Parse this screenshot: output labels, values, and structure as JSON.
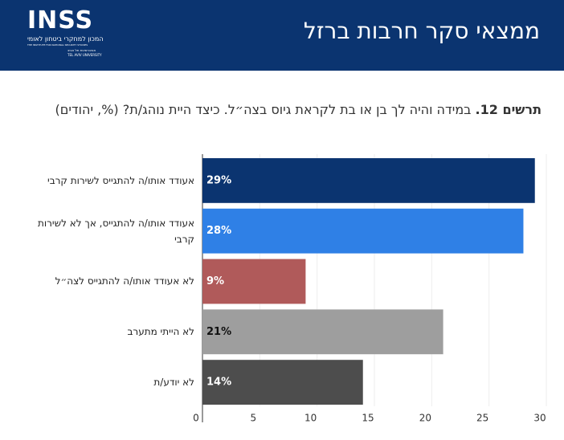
{
  "header": {
    "title": "ממצאי סקר חרבות ברזל",
    "logo": {
      "name": "INSS",
      "hebrew": "המכון למחקרי ביטחון לאומי",
      "english": "THE INSTITUTE FOR NATIONAL SECURITY STUDIES",
      "university_hebrew": "אוניברסיטת תל אביב",
      "university_english": "TEL AVIV UNIVERSITY"
    }
  },
  "chart_data": {
    "type": "hbar",
    "title_number": "תרשים 12.",
    "title": "במידה והיה לך בן או בת לקראת גיוס בצה״ל. כיצד היית נוהג/ת? (%, יהודים)",
    "categories": [
      "אעודד אותו/ה להתגייס לשירות קרבי",
      "אעודד אותו/ה להתגייס, אך לא לשירות קרבי",
      "לא אעודד אותו/ה להתגייס לצה״ל",
      "לא הייתי מתערב",
      "לא יודע/ת"
    ],
    "values": [
      29,
      28,
      9,
      21,
      14
    ],
    "value_labels": [
      "29%",
      "28%",
      "9%",
      "21%",
      "14%"
    ],
    "colors": [
      "#0b3470",
      "#2f80e6",
      "#b05a5a",
      "#9e9e9e",
      "#4d4d4d"
    ],
    "xlim": [
      0,
      30
    ],
    "xticks": [
      0,
      5,
      10,
      15,
      20,
      25,
      30
    ],
    "grid": true
  }
}
